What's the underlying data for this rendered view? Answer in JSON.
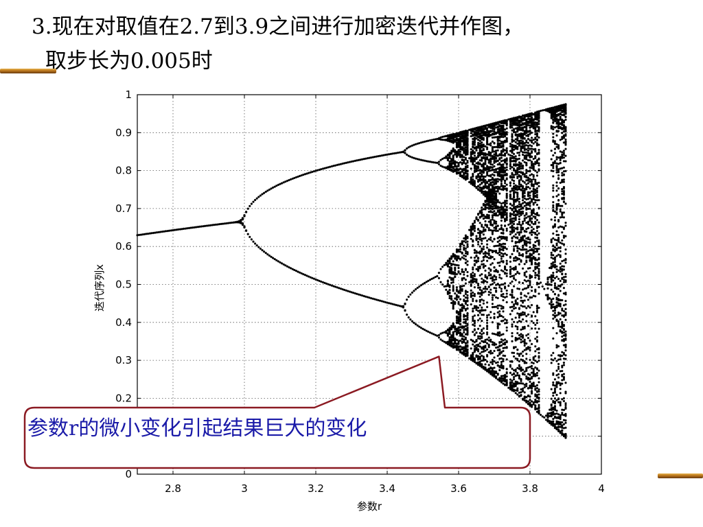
{
  "slide": {
    "title_line1": "3.现在对取值在2.7到3.9之间进行加密迭代并作图，",
    "title_line2": "取步长为0.005时"
  },
  "colors": {
    "points": "#000000",
    "callout_border": "#8b1a22",
    "callout_text": "#1a1aa8",
    "deco_gold": "#c8861e"
  },
  "chart_data": {
    "type": "scatter",
    "title": "",
    "xlabel": "参数r",
    "ylabel": "迭代序列x",
    "xlim": [
      2.7,
      4
    ],
    "ylim": [
      0,
      1
    ],
    "xticks": [
      2.8,
      3,
      3.2,
      3.4,
      3.6,
      3.8,
      4
    ],
    "yticks": [
      0,
      0.1,
      0.2,
      0.3,
      0.4,
      0.5,
      0.6,
      0.7,
      0.8,
      0.9,
      1
    ],
    "grid": true,
    "marker": "star",
    "generator": {
      "map": "x = r * x * (1 - x)",
      "r_start": 2.7,
      "r_end": 3.9,
      "r_step": 0.005
    }
  },
  "annotation": {
    "text": "参数r的微小变化引起结果巨大的变化",
    "points_to": {
      "x": 3.545,
      "y": 0.31
    }
  }
}
